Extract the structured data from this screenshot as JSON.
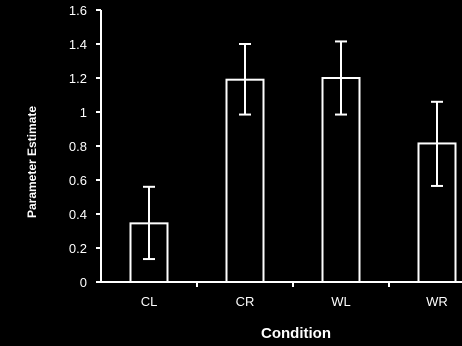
{
  "chart_data": {
    "type": "bar",
    "categories": [
      "CL",
      "CR",
      "WL",
      "WR"
    ],
    "values": [
      0.345,
      1.19,
      1.2,
      0.815
    ],
    "error_low": [
      0.135,
      0.985,
      0.985,
      0.565
    ],
    "error_high": [
      0.56,
      1.4,
      1.415,
      1.06
    ],
    "xlabel": "Condition",
    "ylabel": "Parameter Estimate",
    "ylim": [
      0,
      1.6
    ],
    "yticks": [
      0,
      0.2,
      0.4,
      0.6,
      0.8,
      1,
      1.2,
      1.4,
      1.6
    ],
    "ytick_labels": [
      "0",
      "0.2",
      "0.4",
      "0.6",
      "0.8",
      "1",
      "1.2",
      "1.4",
      "1.6"
    ],
    "grid": false,
    "colors": {
      "background": "#000000",
      "bar_fill": "#000000",
      "stroke": "#ffffff",
      "text": "#ffffff"
    }
  }
}
